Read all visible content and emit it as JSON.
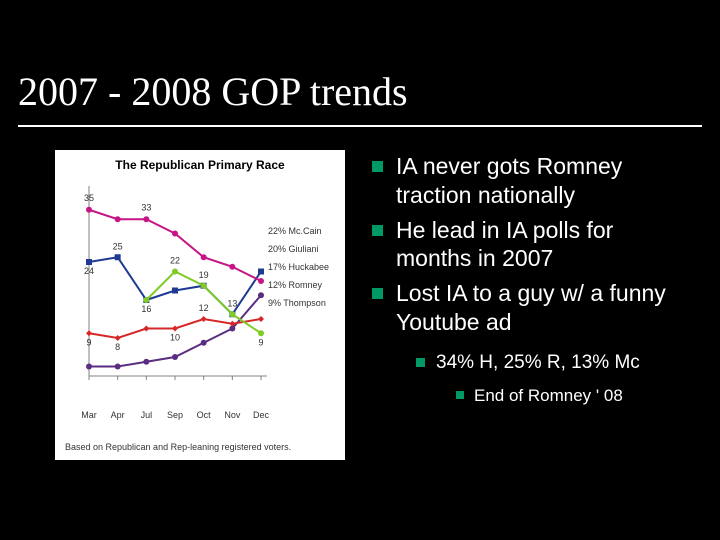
{
  "slide": {
    "title": "2007 - 2008 GOP trends",
    "background": "#000000",
    "accent": "#009966",
    "text_color": "#ffffff"
  },
  "chart": {
    "type": "line",
    "title": "The Republican Primary Race",
    "footer": "Based on Republican and Rep-leaning registered voters.",
    "background": "#ffffff",
    "x_categories": [
      "Mar",
      "Apr",
      "Jul",
      "Sep",
      "Oct",
      "Nov",
      "Dec"
    ],
    "x_positions": [
      0,
      1,
      2,
      3,
      4,
      5,
      6
    ],
    "ylim": [
      0,
      40
    ],
    "series": [
      {
        "name": "Mc.Cain",
        "color": "#1f3a93",
        "marker": "square",
        "values": [
          24,
          25,
          16,
          18,
          19,
          13,
          22
        ],
        "legend_value": "22%"
      },
      {
        "name": "Giuliani",
        "color": "#c71585",
        "marker": "circle",
        "values": [
          35,
          33,
          33,
          30,
          25,
          23,
          20
        ],
        "legend_value": "20%"
      },
      {
        "name": "Huckabee",
        "color": "#5a2d82",
        "marker": "circle",
        "values": [
          2,
          2,
          3,
          4,
          7,
          10,
          17
        ],
        "legend_value": "17%"
      },
      {
        "name": "Romney",
        "color": "#d62728",
        "marker": "diamond",
        "values": [
          9,
          8,
          10,
          10,
          12,
          11,
          12
        ],
        "legend_value": "12%"
      },
      {
        "name": "Thompson",
        "color": "#7fcc28",
        "marker": "circle",
        "values": [
          null,
          null,
          16,
          22,
          19,
          13,
          9
        ],
        "legend_value": "9%"
      }
    ],
    "line_width": 2,
    "marker_size": 3,
    "axis_color": "#808080",
    "label_fontsize": 9,
    "title_fontsize": 12,
    "show_values": {
      "top": [
        35,
        33,
        22,
        19,
        16,
        13
      ],
      "others": [
        24,
        25,
        12,
        10,
        9,
        8,
        9
      ]
    }
  },
  "bullets": {
    "level1": [
      "IA never gots Romney traction nationally",
      "He lead in IA polls for months in 2007",
      "Lost IA to a guy w/ a funny Youtube ad"
    ],
    "level2": [
      "34% H, 25% R, 13% Mc"
    ],
    "level3": [
      "End of Romney ' 08"
    ]
  }
}
